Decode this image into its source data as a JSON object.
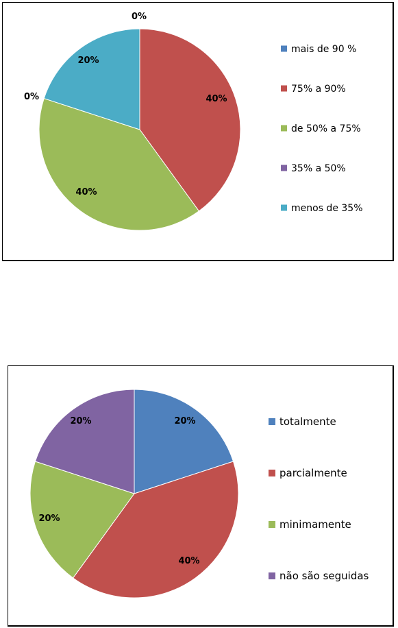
{
  "chart_data": [
    {
      "type": "pie",
      "categories": [
        "mais de 90 %",
        "75% a 90%",
        "de 50% a 75%",
        "35% a 50%",
        "menos de 35%"
      ],
      "values": [
        0,
        40,
        40,
        0,
        20
      ],
      "data_labels": [
        "0%",
        "40%",
        "40%",
        "0%",
        "20%"
      ],
      "colors": [
        "#4F81BD",
        "#C0504D",
        "#9BBB59",
        "#8064A2",
        "#4BACC6"
      ],
      "legend": "right"
    },
    {
      "type": "pie",
      "categories": [
        "totalmente",
        "parcialmente",
        "minimamente",
        "não são seguidas"
      ],
      "values": [
        20,
        40,
        20,
        20
      ],
      "data_labels": [
        "20%",
        "40%",
        "20%",
        "20%"
      ],
      "colors": [
        "#4F81BD",
        "#C0504D",
        "#9BBB59",
        "#8064A2"
      ],
      "legend": "right"
    }
  ]
}
